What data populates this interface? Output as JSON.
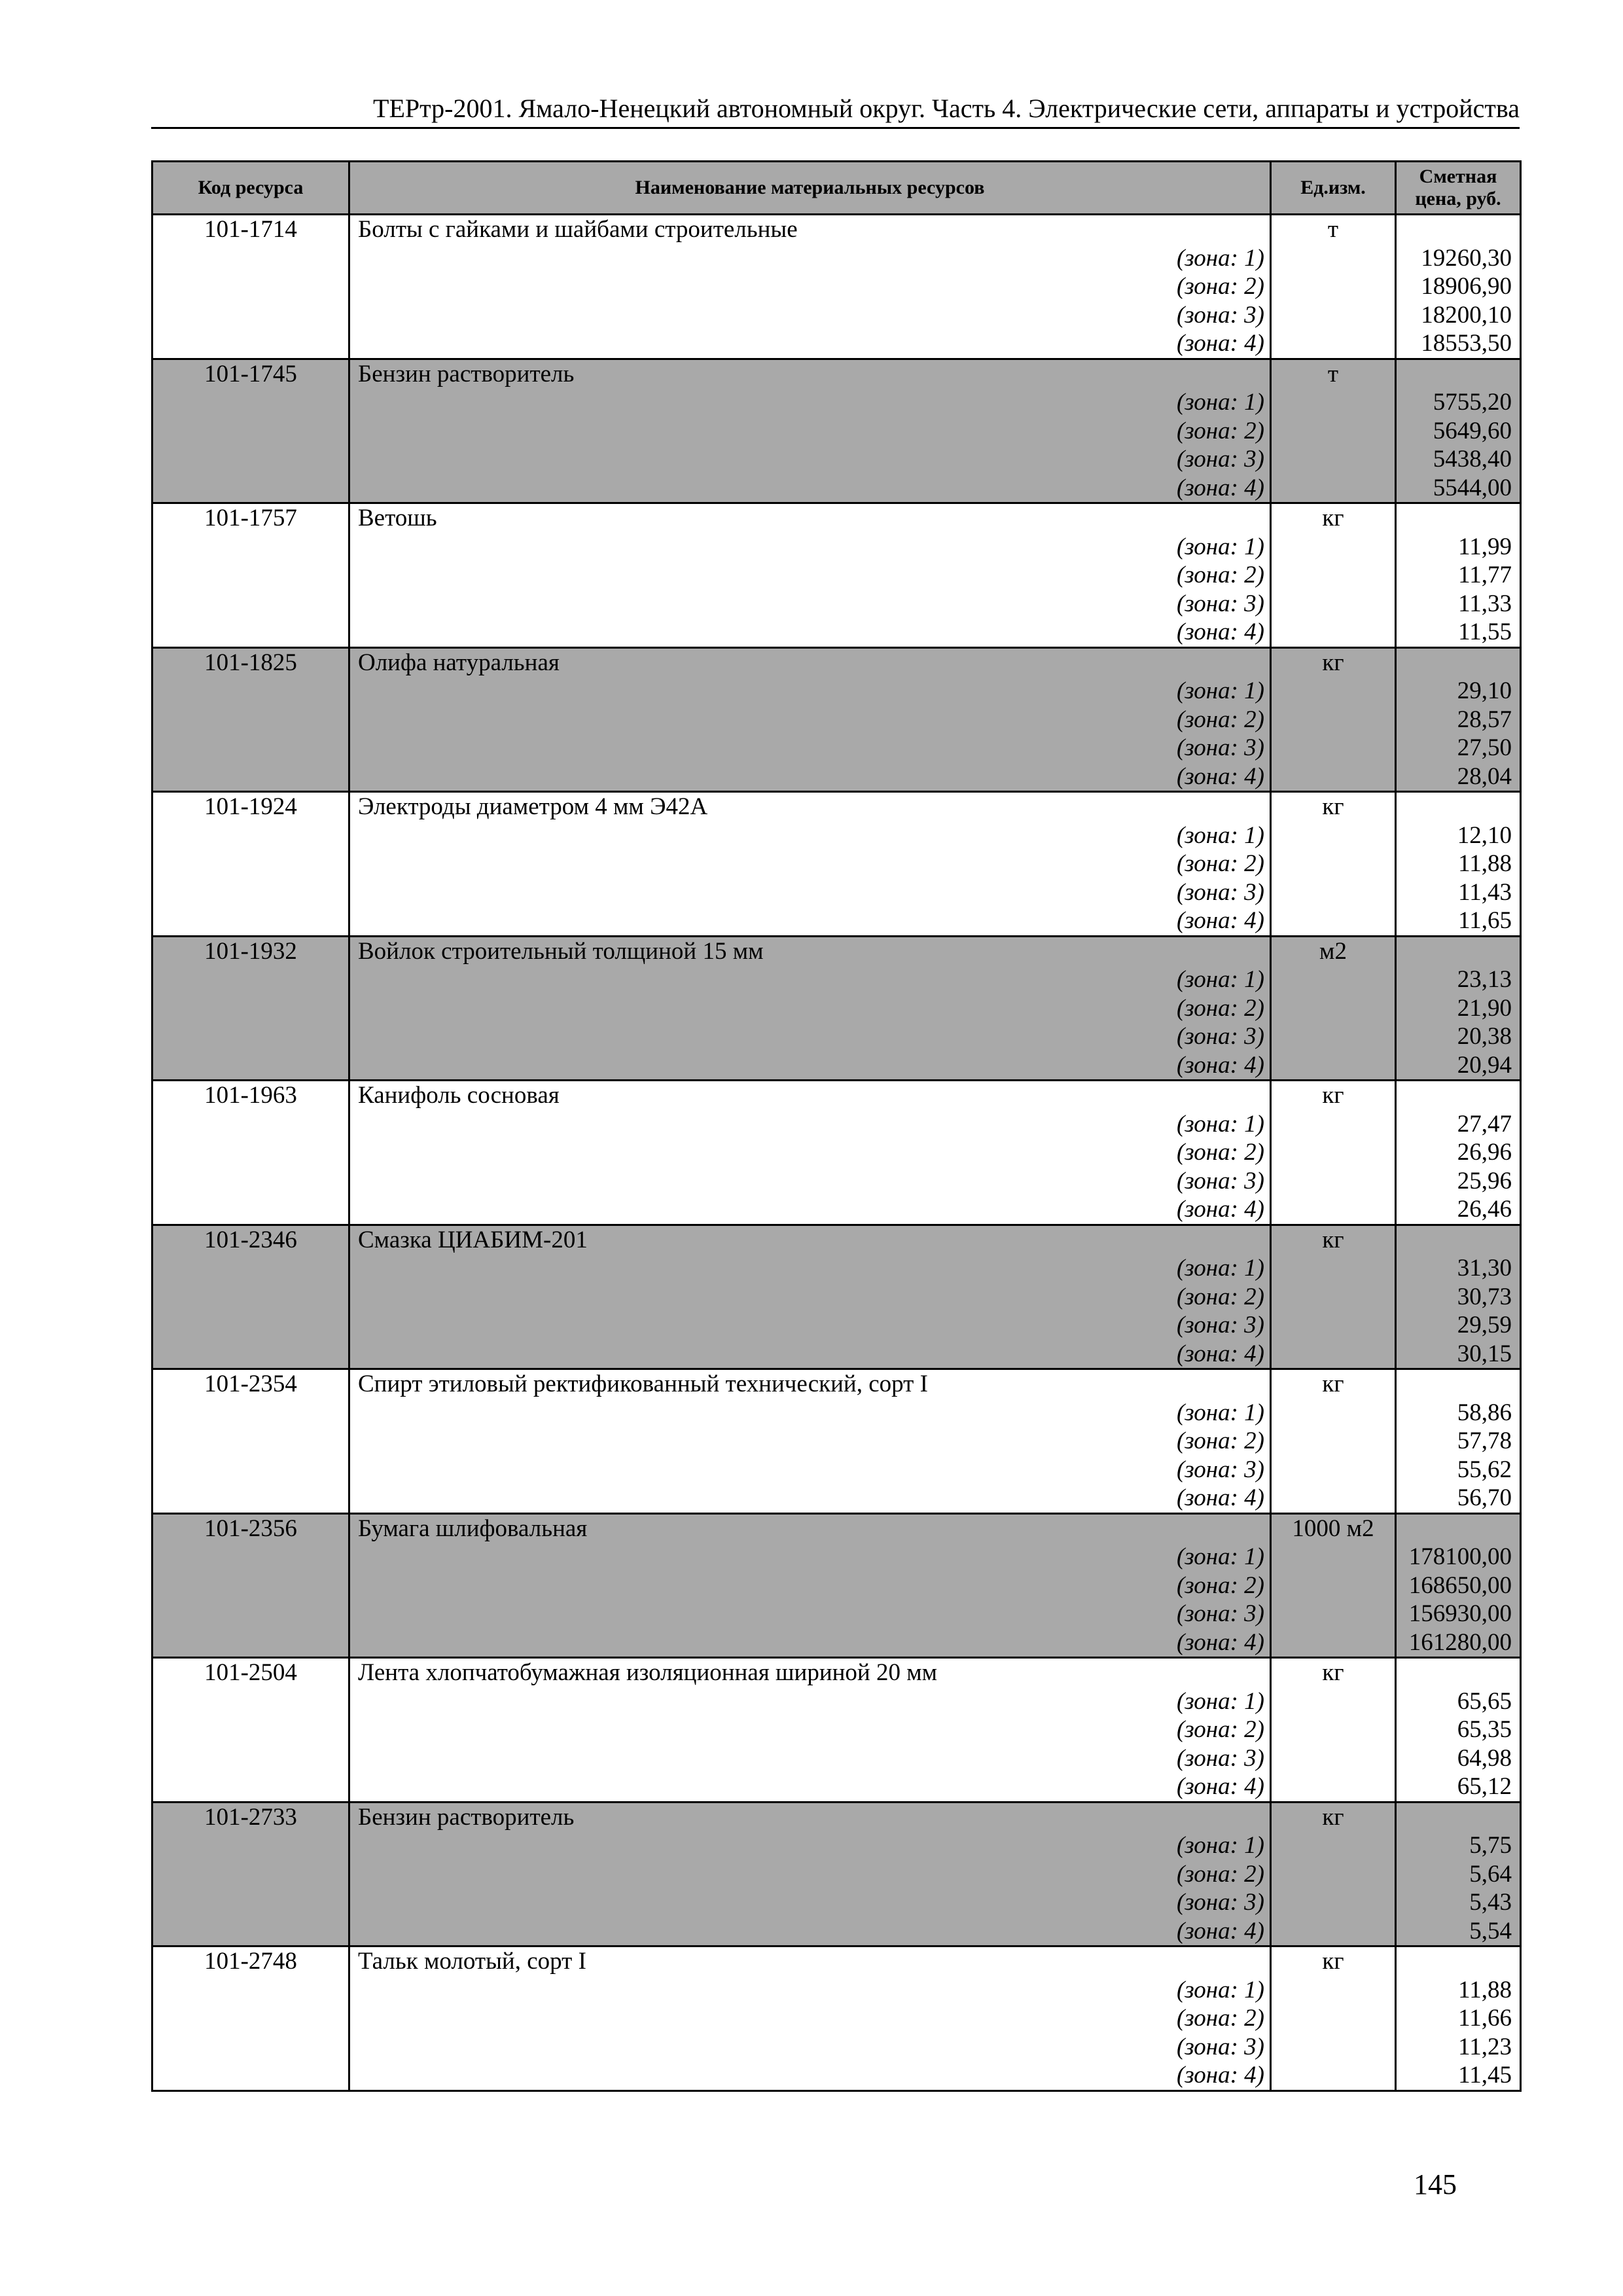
{
  "header": {
    "title": "ТЕРтр-2001. Ямало-Ненецкий автономный округ. Часть 4. Электрические сети, аппараты и устройства"
  },
  "table": {
    "columns": [
      "Код ресурса",
      "Наименование материальных ресурсов",
      "Ед.изм.",
      "Сметная цена, руб."
    ],
    "zone_labels": [
      "(зона: 1)",
      "(зона: 2)",
      "(зона: 3)",
      "(зона: 4)"
    ],
    "shade_color": "#a9a9a9",
    "rows": [
      {
        "code": "101-1714",
        "name": "Болты с гайками и шайбами строительные",
        "unit": "т",
        "prices": [
          "19260,30",
          "18906,90",
          "18200,10",
          "18553,50"
        ]
      },
      {
        "code": "101-1745",
        "name": "Бензин растворитель",
        "unit": "т",
        "prices": [
          "5755,20",
          "5649,60",
          "5438,40",
          "5544,00"
        ]
      },
      {
        "code": "101-1757",
        "name": "Ветошь",
        "unit": "кг",
        "prices": [
          "11,99",
          "11,77",
          "11,33",
          "11,55"
        ]
      },
      {
        "code": "101-1825",
        "name": "Олифа натуральная",
        "unit": "кг",
        "prices": [
          "29,10",
          "28,57",
          "27,50",
          "28,04"
        ]
      },
      {
        "code": "101-1924",
        "name": "Электроды диаметром 4 мм Э42А",
        "unit": "кг",
        "prices": [
          "12,10",
          "11,88",
          "11,43",
          "11,65"
        ]
      },
      {
        "code": "101-1932",
        "name": "Войлок строительный толщиной 15 мм",
        "unit": "м2",
        "prices": [
          "23,13",
          "21,90",
          "20,38",
          "20,94"
        ]
      },
      {
        "code": "101-1963",
        "name": "Канифоль сосновая",
        "unit": "кг",
        "prices": [
          "27,47",
          "26,96",
          "25,96",
          "26,46"
        ]
      },
      {
        "code": "101-2346",
        "name": "Смазка ЦИАБИМ-201",
        "unit": "кг",
        "prices": [
          "31,30",
          "30,73",
          "29,59",
          "30,15"
        ]
      },
      {
        "code": "101-2354",
        "name": "Спирт этиловый ректификованный технический, сорт I",
        "unit": "кг",
        "prices": [
          "58,86",
          "57,78",
          "55,62",
          "56,70"
        ]
      },
      {
        "code": "101-2356",
        "name": "Бумага шлифовальная",
        "unit": "1000 м2",
        "prices": [
          "178100,00",
          "168650,00",
          "156930,00",
          "161280,00"
        ]
      },
      {
        "code": "101-2504",
        "name": "Лента хлопчатобумажная изоляционная шириной 20 мм",
        "unit": "кг",
        "prices": [
          "65,65",
          "65,35",
          "64,98",
          "65,12"
        ]
      },
      {
        "code": "101-2733",
        "name": "Бензин растворитель",
        "unit": "кг",
        "prices": [
          "5,75",
          "5,64",
          "5,43",
          "5,54"
        ]
      },
      {
        "code": "101-2748",
        "name": "Тальк молотый, сорт I",
        "unit": "кг",
        "prices": [
          "11,88",
          "11,66",
          "11,23",
          "11,45"
        ]
      }
    ]
  },
  "footer": {
    "page_number": "145"
  }
}
